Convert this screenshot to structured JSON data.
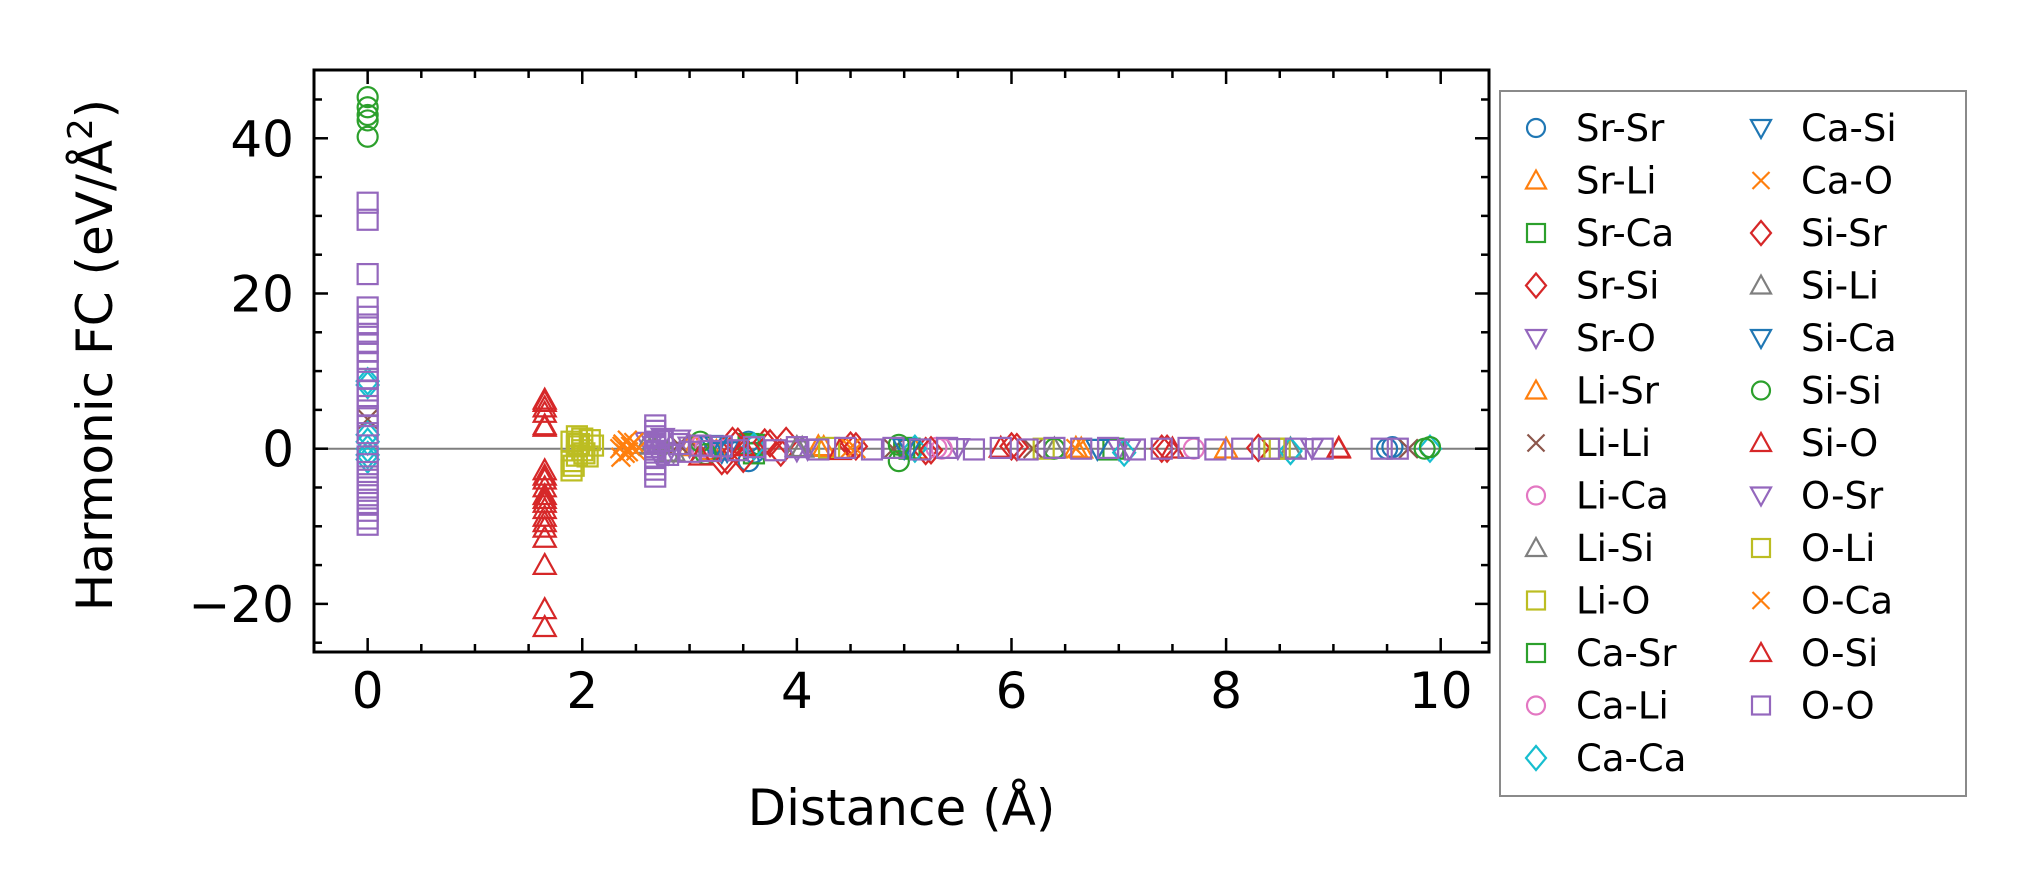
{
  "chart_data": {
    "type": "scatter",
    "xlabel": "Distance (Å)",
    "ylabel": "Harmonic FC (eV/Å²)",
    "ylabel_parts": {
      "pre": "Harmonic FC (eV/Å",
      "sup": "2",
      "post": ")"
    },
    "xlim": [
      -0.5,
      10.45
    ],
    "ylim": [
      -26.2,
      48.8
    ],
    "xticks": [
      0,
      2,
      4,
      6,
      8,
      10
    ],
    "yticks": [
      -20,
      0,
      20,
      40
    ],
    "xtick_labels": [
      "0",
      "2",
      "4",
      "6",
      "8",
      "10"
    ],
    "ytick_labels": [
      "−20",
      "0",
      "20",
      "40"
    ],
    "zero_line": true,
    "legend_position": "right, outside plot",
    "series": [
      {
        "name": "Sr-Sr",
        "marker": "circle",
        "color": "#1f77b4",
        "points": [
          [
            3.55,
            0.9
          ],
          [
            3.6,
            -0.5
          ],
          [
            3.55,
            -1.6
          ],
          [
            3.6,
            0.2
          ],
          [
            9.5,
            0.0
          ],
          [
            9.55,
            0.2
          ]
        ]
      },
      {
        "name": "Sr-Li",
        "marker": "triangle",
        "color": "#ff7f0e",
        "points": [
          [
            3.0,
            0.4
          ],
          [
            3.2,
            -0.2
          ],
          [
            4.2,
            0.3
          ],
          [
            5.1,
            -0.1
          ],
          [
            6.6,
            0.1
          ],
          [
            8.0,
            0.0
          ]
        ]
      },
      {
        "name": "Sr-Ca",
        "marker": "square",
        "color": "#2ca02c",
        "points": [
          [
            3.55,
            0.6
          ],
          [
            3.6,
            -0.6
          ],
          [
            5.0,
            0.1
          ],
          [
            6.9,
            -0.1
          ],
          [
            8.4,
            0.0
          ]
        ]
      },
      {
        "name": "Sr-Si",
        "marker": "diamond",
        "color": "#d62728",
        "points": [
          [
            3.3,
            -1.6
          ],
          [
            3.4,
            1.0
          ],
          [
            3.5,
            -1.3
          ],
          [
            3.7,
            0.8
          ],
          [
            3.85,
            -0.5
          ],
          [
            3.9,
            1.0
          ],
          [
            4.5,
            0.4
          ],
          [
            5.2,
            -0.3
          ],
          [
            6.0,
            0.3
          ],
          [
            7.4,
            0.0
          ],
          [
            8.3,
            0.1
          ]
        ]
      },
      {
        "name": "Sr-O",
        "marker": "tri_down",
        "color": "#9467bd",
        "points": [
          [
            2.6,
            0.9
          ],
          [
            2.7,
            -0.7
          ],
          [
            2.75,
            1.4
          ],
          [
            2.85,
            -0.4
          ],
          [
            3.0,
            0.3
          ],
          [
            4.0,
            -0.2
          ],
          [
            5.5,
            0.1
          ],
          [
            7.0,
            0.0
          ],
          [
            8.8,
            0.1
          ]
        ]
      },
      {
        "name": "Li-Sr",
        "marker": "triangle",
        "color": "#ff7f0e",
        "points": [
          [
            3.05,
            0.3
          ],
          [
            3.25,
            -0.3
          ],
          [
            4.25,
            0.2
          ],
          [
            6.65,
            0.0
          ]
        ]
      },
      {
        "name": "Li-Li",
        "marker": "x",
        "color": "#8c564b",
        "points": [
          [
            0.0,
            3.8
          ],
          [
            2.9,
            0.5
          ],
          [
            3.1,
            -0.4
          ],
          [
            4.9,
            0.0
          ],
          [
            6.2,
            0.0
          ],
          [
            9.7,
            0.0
          ]
        ]
      },
      {
        "name": "Li-Ca",
        "marker": "circle",
        "color": "#e377c2",
        "points": [
          [
            3.1,
            0.3
          ],
          [
            3.3,
            -0.2
          ],
          [
            5.3,
            0.1
          ],
          [
            7.7,
            0.0
          ]
        ]
      },
      {
        "name": "Li-Si",
        "marker": "triangle",
        "color": "#7f7f7f",
        "points": [
          [
            2.6,
            0.6
          ],
          [
            2.8,
            -0.5
          ],
          [
            4.0,
            0.2
          ],
          [
            6.4,
            0.0
          ],
          [
            8.6,
            0.0
          ]
        ]
      },
      {
        "name": "Li-O",
        "marker": "square",
        "color": "#bcbd22",
        "points": [
          [
            1.9,
            -1.6
          ],
          [
            1.9,
            0.9
          ],
          [
            1.95,
            -0.9
          ],
          [
            1.95,
            0.3
          ],
          [
            2.0,
            -0.2
          ],
          [
            2.0,
            1.3
          ],
          [
            2.05,
            -1.0
          ],
          [
            2.1,
            0.4
          ],
          [
            1.9,
            -2.8
          ],
          [
            1.95,
            1.6
          ],
          [
            4.3,
            0.1
          ],
          [
            6.3,
            0.0
          ],
          [
            8.5,
            0.0
          ]
        ]
      },
      {
        "name": "Ca-Sr",
        "marker": "square",
        "color": "#2ca02c",
        "points": [
          [
            3.6,
            0.5
          ],
          [
            5.05,
            0.0
          ],
          [
            6.95,
            0.0
          ]
        ]
      },
      {
        "name": "Ca-Li",
        "marker": "circle",
        "color": "#e377c2",
        "points": [
          [
            3.15,
            0.2
          ],
          [
            5.35,
            0.0
          ]
        ]
      },
      {
        "name": "Ca-Ca",
        "marker": "diamond",
        "color": "#17becf",
        "points": [
          [
            0.0,
            8.7
          ],
          [
            0.0,
            8.2
          ],
          [
            0.0,
            1.8
          ],
          [
            0.0,
            0.9
          ],
          [
            0.0,
            0.0
          ],
          [
            0.0,
            -0.8
          ],
          [
            0.0,
            -1.4
          ],
          [
            3.6,
            0.3
          ],
          [
            5.1,
            0.0
          ],
          [
            7.05,
            -0.5
          ],
          [
            8.6,
            -0.3
          ],
          [
            9.9,
            0.0
          ]
        ]
      },
      {
        "name": "Ca-Si",
        "marker": "tri_down",
        "color": "#1f77b4",
        "points": [
          [
            3.2,
            0.5
          ],
          [
            3.3,
            -0.4
          ],
          [
            5.0,
            0.1
          ],
          [
            6.8,
            0.0
          ]
        ]
      },
      {
        "name": "Ca-O",
        "marker": "x",
        "color": "#ff7f0e",
        "points": [
          [
            2.35,
            0.0
          ],
          [
            2.38,
            0.6
          ],
          [
            2.4,
            -0.6
          ],
          [
            2.45,
            0.3
          ],
          [
            2.5,
            -0.3
          ],
          [
            2.42,
            1.1
          ],
          [
            2.36,
            -1.1
          ],
          [
            4.5,
            0.1
          ],
          [
            6.6,
            0.0
          ]
        ]
      },
      {
        "name": "Si-Sr",
        "marker": "diamond",
        "color": "#d62728",
        "points": [
          [
            3.35,
            -1.5
          ],
          [
            3.45,
            0.9
          ],
          [
            3.75,
            0.7
          ],
          [
            4.55,
            0.3
          ],
          [
            5.25,
            -0.2
          ],
          [
            6.05,
            0.2
          ],
          [
            7.45,
            0.0
          ]
        ]
      },
      {
        "name": "Si-Li",
        "marker": "triangle",
        "color": "#7f7f7f",
        "points": [
          [
            2.65,
            0.5
          ],
          [
            2.85,
            -0.4
          ],
          [
            4.05,
            0.1
          ]
        ]
      },
      {
        "name": "Si-Ca",
        "marker": "tri_down",
        "color": "#1f77b4",
        "points": [
          [
            3.25,
            0.4
          ],
          [
            3.35,
            -0.3
          ],
          [
            5.05,
            0.0
          ]
        ]
      },
      {
        "name": "Si-Si",
        "marker": "circle",
        "color": "#2ca02c",
        "points": [
          [
            0.0,
            45.3
          ],
          [
            0.0,
            44.0
          ],
          [
            0.0,
            43.0
          ],
          [
            0.0,
            42.3
          ],
          [
            0.0,
            40.2
          ],
          [
            3.1,
            0.9
          ],
          [
            3.15,
            -0.7
          ],
          [
            4.95,
            -1.6
          ],
          [
            4.95,
            0.5
          ],
          [
            6.4,
            0.0
          ],
          [
            9.85,
            0.0
          ],
          [
            9.9,
            0.2
          ]
        ]
      },
      {
        "name": "Si-O",
        "marker": "triangle",
        "color": "#d62728",
        "points": [
          [
            1.65,
            6.3
          ],
          [
            1.65,
            5.3
          ],
          [
            1.65,
            4.6
          ],
          [
            1.65,
            2.8
          ],
          [
            1.65,
            -2.8
          ],
          [
            1.65,
            -4.0
          ],
          [
            1.65,
            -5.0
          ],
          [
            1.65,
            -6.0
          ],
          [
            1.65,
            -7.0
          ],
          [
            1.65,
            -7.8
          ],
          [
            1.65,
            -8.8
          ],
          [
            1.65,
            -10.2
          ],
          [
            1.65,
            -11.5
          ],
          [
            1.65,
            -15.0
          ],
          [
            1.65,
            -20.7
          ],
          [
            1.65,
            -23.0
          ],
          [
            3.1,
            -0.9
          ],
          [
            3.5,
            0.3
          ],
          [
            4.4,
            -0.2
          ],
          [
            5.9,
            0.1
          ],
          [
            7.5,
            0.0
          ],
          [
            9.05,
            0.0
          ]
        ]
      },
      {
        "name": "O-Sr",
        "marker": "tri_down",
        "color": "#9467bd",
        "points": [
          [
            2.65,
            0.8
          ],
          [
            2.8,
            -0.6
          ],
          [
            2.9,
            1.2
          ],
          [
            4.1,
            0.0
          ],
          [
            7.1,
            0.0
          ]
        ]
      },
      {
        "name": "O-Li",
        "marker": "square",
        "color": "#bcbd22",
        "points": [
          [
            1.92,
            -2.2
          ],
          [
            1.97,
            0.6
          ],
          [
            2.02,
            -0.6
          ],
          [
            2.07,
            1.1
          ],
          [
            8.45,
            0.0
          ]
        ]
      },
      {
        "name": "O-Ca",
        "marker": "x",
        "color": "#ff7f0e",
        "points": [
          [
            2.37,
            0.3
          ],
          [
            2.43,
            -0.4
          ],
          [
            2.48,
            0.8
          ],
          [
            4.55,
            0.0
          ]
        ]
      },
      {
        "name": "O-Si",
        "marker": "triangle",
        "color": "#d62728",
        "points": [
          [
            1.65,
            6.0
          ],
          [
            1.65,
            3.0
          ],
          [
            1.65,
            -3.5
          ],
          [
            1.65,
            -6.5
          ],
          [
            1.65,
            -9.5
          ],
          [
            9.05,
            0.1
          ]
        ]
      },
      {
        "name": "O-O",
        "marker": "square",
        "color": "#9467bd",
        "points": [
          [
            0.0,
            31.7
          ],
          [
            0.0,
            29.5
          ],
          [
            0.0,
            22.5
          ],
          [
            0.0,
            18.2
          ],
          [
            0.0,
            17.0
          ],
          [
            0.0,
            16.0
          ],
          [
            0.0,
            14.8
          ],
          [
            0.0,
            13.6
          ],
          [
            0.0,
            12.5
          ],
          [
            0.0,
            11.2
          ],
          [
            0.0,
            10.0
          ],
          [
            0.0,
            9.0
          ],
          [
            0.0,
            7.5
          ],
          [
            0.0,
            6.5
          ],
          [
            0.0,
            5.5
          ],
          [
            0.0,
            4.2
          ],
          [
            0.0,
            3.0
          ],
          [
            0.0,
            2.0
          ],
          [
            0.0,
            -1.0
          ],
          [
            0.0,
            -2.0
          ],
          [
            0.0,
            -3.0
          ],
          [
            0.0,
            -4.0
          ],
          [
            0.0,
            -5.0
          ],
          [
            0.0,
            -6.0
          ],
          [
            0.0,
            -7.0
          ],
          [
            0.0,
            -8.0
          ],
          [
            0.0,
            -9.0
          ],
          [
            0.0,
            -9.8
          ],
          [
            2.68,
            3.0
          ],
          [
            2.68,
            2.3
          ],
          [
            2.68,
            1.6
          ],
          [
            2.68,
            0.9
          ],
          [
            2.68,
            0.2
          ],
          [
            2.68,
            -0.5
          ],
          [
            2.68,
            -1.2
          ],
          [
            2.68,
            -2.0
          ],
          [
            2.68,
            -2.7
          ],
          [
            2.68,
            -3.6
          ],
          [
            2.75,
            1.0
          ],
          [
            2.8,
            -0.8
          ],
          [
            2.9,
            0.6
          ],
          [
            3.0,
            -0.4
          ],
          [
            3.1,
            0.4
          ],
          [
            3.2,
            -0.3
          ],
          [
            3.3,
            0.3
          ],
          [
            3.45,
            -0.2
          ],
          [
            3.6,
            0.2
          ],
          [
            3.8,
            -0.2
          ],
          [
            4.0,
            0.2
          ],
          [
            4.2,
            -0.1
          ],
          [
            4.45,
            0.1
          ],
          [
            4.7,
            -0.1
          ],
          [
            4.9,
            0.1
          ],
          [
            5.15,
            -0.1
          ],
          [
            5.4,
            0.1
          ],
          [
            5.65,
            -0.1
          ],
          [
            5.9,
            0.1
          ],
          [
            6.15,
            -0.1
          ],
          [
            6.4,
            0.1
          ],
          [
            6.65,
            0.0
          ],
          [
            6.9,
            0.1
          ],
          [
            7.15,
            -0.1
          ],
          [
            7.4,
            0.0
          ],
          [
            7.65,
            0.1
          ],
          [
            7.9,
            -0.1
          ],
          [
            8.15,
            0.0
          ],
          [
            8.4,
            0.0
          ],
          [
            8.65,
            0.0
          ],
          [
            8.9,
            0.0
          ],
          [
            9.45,
            0.0
          ],
          [
            9.6,
            0.0
          ]
        ]
      }
    ]
  }
}
